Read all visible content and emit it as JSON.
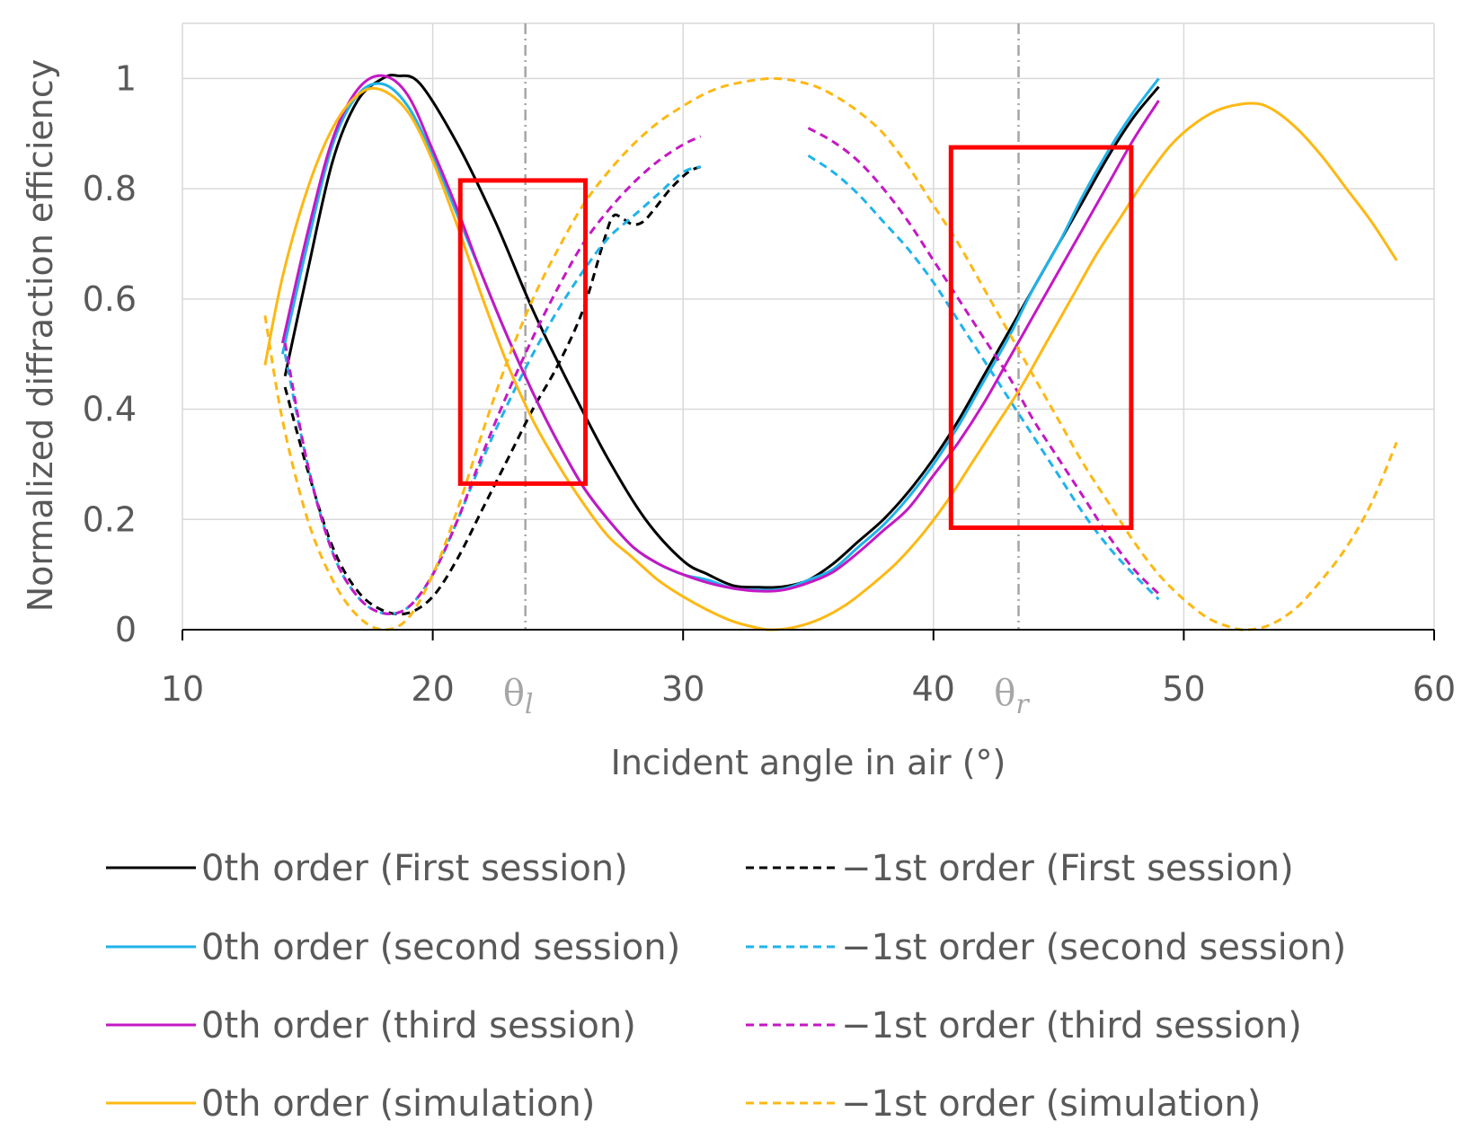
{
  "chart_data": {
    "type": "line",
    "xlabel": "Incident angle in air (°)",
    "ylabel": "Normalized diffraction efficiency",
    "xlim": [
      10,
      60
    ],
    "ylim": [
      0,
      1.1
    ],
    "x_ticks": [
      "10",
      "20",
      "30",
      "40",
      "50",
      "60"
    ],
    "y_ticks": [
      "0",
      "0.2",
      "0.4",
      "0.6",
      "0.8",
      "1"
    ],
    "grid": true,
    "vlines": [
      {
        "label": "θ",
        "sub": "l",
        "x": 23.7,
        "color": "#a6a6a6"
      },
      {
        "label": "θ",
        "sub": "r",
        "x": 43.4,
        "color": "#a6a6a6"
      }
    ],
    "highlight_boxes": [
      {
        "x": [
          21.1,
          26.1
        ],
        "y": [
          0.265,
          0.815
        ],
        "color": "#ff0000"
      },
      {
        "x": [
          40.7,
          47.9
        ],
        "y": [
          0.185,
          0.875
        ],
        "color": "#ff0000"
      }
    ],
    "series": [
      {
        "name": "0th order (First session)",
        "color": "#000000",
        "dash": false,
        "points": [
          [
            14.1,
            0.46
          ],
          [
            15,
            0.65
          ],
          [
            16,
            0.85
          ],
          [
            17,
            0.96
          ],
          [
            18,
            1.0
          ],
          [
            18.6,
            1.005
          ],
          [
            19.5,
            0.99
          ],
          [
            21,
            0.88
          ],
          [
            22.5,
            0.74
          ],
          [
            24,
            0.58
          ],
          [
            25.5,
            0.44
          ],
          [
            27,
            0.31
          ],
          [
            28.5,
            0.2
          ],
          [
            30,
            0.125
          ],
          [
            31,
            0.1
          ],
          [
            32,
            0.08
          ],
          [
            33,
            0.077
          ],
          [
            34,
            0.078
          ],
          [
            35,
            0.09
          ],
          [
            36,
            0.12
          ],
          [
            37,
            0.16
          ],
          [
            38,
            0.2
          ],
          [
            39,
            0.25
          ],
          [
            40,
            0.31
          ],
          [
            41,
            0.38
          ],
          [
            42,
            0.46
          ],
          [
            43,
            0.54
          ],
          [
            44,
            0.62
          ],
          [
            45,
            0.7
          ],
          [
            46,
            0.78
          ],
          [
            47,
            0.86
          ],
          [
            48,
            0.93
          ],
          [
            49,
            0.985
          ]
        ]
      },
      {
        "name": "−1st order (First session)",
        "color": "#000000",
        "dash": true,
        "points": [
          [
            14.1,
            0.44
          ],
          [
            15,
            0.29
          ],
          [
            16,
            0.15
          ],
          [
            17,
            0.07
          ],
          [
            18,
            0.035
          ],
          [
            19,
            0.03
          ],
          [
            20,
            0.06
          ],
          [
            21,
            0.13
          ],
          [
            22,
            0.22
          ],
          [
            23,
            0.31
          ],
          [
            24,
            0.4
          ],
          [
            25,
            0.48
          ],
          [
            26,
            0.58
          ],
          [
            26.8,
            0.7
          ],
          [
            27.2,
            0.75
          ],
          [
            27.6,
            0.745
          ],
          [
            28,
            0.735
          ],
          [
            28.4,
            0.74
          ],
          [
            28.8,
            0.76
          ],
          [
            29.5,
            0.8
          ],
          [
            30.2,
            0.83
          ],
          [
            30.7,
            0.84
          ]
        ]
      },
      {
        "name": "0th order (second session)",
        "color": "#1fb3ea",
        "dash": false,
        "points": [
          [
            14,
            0.5
          ],
          [
            15,
            0.7
          ],
          [
            16,
            0.88
          ],
          [
            17,
            0.97
          ],
          [
            18,
            0.99
          ],
          [
            19,
            0.95
          ],
          [
            20,
            0.86
          ],
          [
            21,
            0.75
          ],
          [
            22,
            0.64
          ],
          [
            23,
            0.53
          ],
          [
            24,
            0.43
          ],
          [
            25,
            0.34
          ],
          [
            26,
            0.26
          ],
          [
            27,
            0.2
          ],
          [
            28,
            0.15
          ],
          [
            29,
            0.12
          ],
          [
            30,
            0.1
          ],
          [
            31,
            0.09
          ],
          [
            32,
            0.075
          ],
          [
            33,
            0.072
          ],
          [
            34,
            0.074
          ],
          [
            35,
            0.09
          ],
          [
            36,
            0.11
          ],
          [
            37,
            0.15
          ],
          [
            38,
            0.19
          ],
          [
            39,
            0.24
          ],
          [
            40,
            0.3
          ],
          [
            41,
            0.37
          ],
          [
            42,
            0.45
          ],
          [
            43,
            0.53
          ],
          [
            44,
            0.62
          ],
          [
            45,
            0.7
          ],
          [
            46,
            0.79
          ],
          [
            47,
            0.87
          ],
          [
            48,
            0.94
          ],
          [
            49,
            1.0
          ]
        ]
      },
      {
        "name": "−1st order (second session)",
        "color": "#1fb3ea",
        "dash": true,
        "points": [
          [
            14.1,
            0.5
          ],
          [
            15,
            0.3
          ],
          [
            16,
            0.14
          ],
          [
            17,
            0.06
          ],
          [
            18,
            0.03
          ],
          [
            19,
            0.04
          ],
          [
            20,
            0.1
          ],
          [
            21,
            0.2
          ],
          [
            22,
            0.31
          ],
          [
            23,
            0.41
          ],
          [
            24,
            0.5
          ],
          [
            25,
            0.58
          ],
          [
            26,
            0.65
          ],
          [
            27,
            0.71
          ],
          [
            28,
            0.75
          ],
          [
            29,
            0.79
          ],
          [
            30,
            0.83
          ],
          [
            30.7,
            0.84
          ],
          [
            35,
            0.86
          ],
          [
            36,
            0.83
          ],
          [
            37,
            0.79
          ],
          [
            38,
            0.74
          ],
          [
            39,
            0.69
          ],
          [
            40,
            0.63
          ],
          [
            41,
            0.56
          ],
          [
            42,
            0.49
          ],
          [
            43,
            0.42
          ],
          [
            44,
            0.35
          ],
          [
            45,
            0.28
          ],
          [
            46,
            0.21
          ],
          [
            47,
            0.15
          ],
          [
            48,
            0.1
          ],
          [
            49,
            0.055
          ]
        ]
      },
      {
        "name": "0th order (third session)",
        "color": "#c418c4",
        "dash": false,
        "points": [
          [
            14,
            0.52
          ],
          [
            15,
            0.72
          ],
          [
            16,
            0.89
          ],
          [
            17,
            0.98
          ],
          [
            18,
            1.005
          ],
          [
            19,
            0.97
          ],
          [
            20,
            0.87
          ],
          [
            21,
            0.76
          ],
          [
            22,
            0.64
          ],
          [
            23,
            0.53
          ],
          [
            24,
            0.43
          ],
          [
            25,
            0.34
          ],
          [
            26,
            0.26
          ],
          [
            27,
            0.2
          ],
          [
            28,
            0.15
          ],
          [
            29,
            0.12
          ],
          [
            30,
            0.1
          ],
          [
            31,
            0.085
          ],
          [
            32,
            0.075
          ],
          [
            33,
            0.07
          ],
          [
            34,
            0.072
          ],
          [
            35,
            0.085
          ],
          [
            36,
            0.105
          ],
          [
            37,
            0.14
          ],
          [
            38,
            0.18
          ],
          [
            39,
            0.22
          ],
          [
            40,
            0.28
          ],
          [
            41,
            0.34
          ],
          [
            42,
            0.41
          ],
          [
            43,
            0.49
          ],
          [
            44,
            0.57
          ],
          [
            45,
            0.65
          ],
          [
            46,
            0.73
          ],
          [
            47,
            0.81
          ],
          [
            48,
            0.89
          ],
          [
            49,
            0.96
          ]
        ]
      },
      {
        "name": "−1st order (third session)",
        "color": "#c418c4",
        "dash": true,
        "points": [
          [
            14.1,
            0.52
          ],
          [
            15,
            0.3
          ],
          [
            16,
            0.14
          ],
          [
            17,
            0.06
          ],
          [
            18,
            0.03
          ],
          [
            19,
            0.04
          ],
          [
            20,
            0.1
          ],
          [
            21,
            0.2
          ],
          [
            22,
            0.32
          ],
          [
            23,
            0.43
          ],
          [
            24,
            0.53
          ],
          [
            25,
            0.62
          ],
          [
            26,
            0.7
          ],
          [
            27,
            0.76
          ],
          [
            28,
            0.81
          ],
          [
            29,
            0.85
          ],
          [
            30,
            0.88
          ],
          [
            30.7,
            0.895
          ],
          [
            35,
            0.91
          ],
          [
            36,
            0.885
          ],
          [
            37,
            0.85
          ],
          [
            38,
            0.8
          ],
          [
            39,
            0.74
          ],
          [
            40,
            0.67
          ],
          [
            41,
            0.6
          ],
          [
            42,
            0.53
          ],
          [
            43,
            0.46
          ],
          [
            44,
            0.38
          ],
          [
            45,
            0.31
          ],
          [
            46,
            0.24
          ],
          [
            47,
            0.17
          ],
          [
            48,
            0.11
          ],
          [
            49,
            0.065
          ]
        ]
      },
      {
        "name": "0th order (simulation)",
        "color": "#fdb813",
        "dash": false,
        "points": [
          [
            13.3,
            0.48
          ],
          [
            14,
            0.64
          ],
          [
            15,
            0.8
          ],
          [
            16,
            0.91
          ],
          [
            17,
            0.97
          ],
          [
            17.9,
            0.98
          ],
          [
            19,
            0.94
          ],
          [
            20,
            0.85
          ],
          [
            21,
            0.73
          ],
          [
            22,
            0.6
          ],
          [
            23,
            0.48
          ],
          [
            24,
            0.38
          ],
          [
            25,
            0.3
          ],
          [
            26,
            0.23
          ],
          [
            27,
            0.17
          ],
          [
            28,
            0.13
          ],
          [
            29,
            0.09
          ],
          [
            30,
            0.06
          ],
          [
            31,
            0.035
          ],
          [
            32,
            0.015
          ],
          [
            33,
            0.003
          ],
          [
            33.6,
            0.0
          ],
          [
            34.5,
            0.005
          ],
          [
            35.5,
            0.02
          ],
          [
            36.5,
            0.045
          ],
          [
            37.5,
            0.08
          ],
          [
            38.5,
            0.12
          ],
          [
            39.5,
            0.17
          ],
          [
            40.5,
            0.23
          ],
          [
            41.5,
            0.3
          ],
          [
            42.5,
            0.37
          ],
          [
            43.5,
            0.44
          ],
          [
            44.5,
            0.52
          ],
          [
            45.5,
            0.6
          ],
          [
            46.5,
            0.68
          ],
          [
            47.5,
            0.75
          ],
          [
            48.5,
            0.82
          ],
          [
            49.5,
            0.88
          ],
          [
            50.5,
            0.92
          ],
          [
            51.5,
            0.945
          ],
          [
            52.7,
            0.955
          ],
          [
            53.5,
            0.945
          ],
          [
            54.5,
            0.91
          ],
          [
            55.5,
            0.86
          ],
          [
            56.5,
            0.8
          ],
          [
            57.5,
            0.74
          ],
          [
            58.5,
            0.67
          ]
        ]
      },
      {
        "name": "−1st order (simulation)",
        "color": "#fdb813",
        "dash": true,
        "points": [
          [
            13.3,
            0.57
          ],
          [
            14,
            0.38
          ],
          [
            15,
            0.2
          ],
          [
            16,
            0.09
          ],
          [
            17,
            0.025
          ],
          [
            18,
            0.0
          ],
          [
            19,
            0.02
          ],
          [
            20,
            0.1
          ],
          [
            21,
            0.22
          ],
          [
            22,
            0.36
          ],
          [
            23,
            0.49
          ],
          [
            24,
            0.6
          ],
          [
            25,
            0.69
          ],
          [
            26,
            0.77
          ],
          [
            27,
            0.83
          ],
          [
            28,
            0.88
          ],
          [
            29,
            0.92
          ],
          [
            30,
            0.95
          ],
          [
            31,
            0.975
          ],
          [
            32,
            0.99
          ],
          [
            33.6,
            1.0
          ],
          [
            35,
            0.99
          ],
          [
            36,
            0.97
          ],
          [
            37,
            0.94
          ],
          [
            38,
            0.9
          ],
          [
            39,
            0.84
          ],
          [
            40,
            0.77
          ],
          [
            41,
            0.7
          ],
          [
            42,
            0.62
          ],
          [
            43,
            0.54
          ],
          [
            44,
            0.46
          ],
          [
            45,
            0.38
          ],
          [
            46,
            0.3
          ],
          [
            47,
            0.23
          ],
          [
            48,
            0.16
          ],
          [
            49,
            0.1
          ],
          [
            50,
            0.055
          ],
          [
            51,
            0.02
          ],
          [
            52,
            0.003
          ],
          [
            52.6,
            0.0
          ],
          [
            53.5,
            0.01
          ],
          [
            54.5,
            0.04
          ],
          [
            55.5,
            0.09
          ],
          [
            56.5,
            0.15
          ],
          [
            57.5,
            0.23
          ],
          [
            58.5,
            0.34
          ]
        ]
      }
    ]
  },
  "legend": {
    "items": [
      {
        "label": "0th order (First session)",
        "color": "#000000",
        "dash": false
      },
      {
        "label": "−1st order (First session)",
        "color": "#000000",
        "dash": true
      },
      {
        "label": "0th order (second session)",
        "color": "#1fb3ea",
        "dash": false
      },
      {
        "label": "−1st order (second session)",
        "color": "#1fb3ea",
        "dash": true
      },
      {
        "label": "0th order (third session)",
        "color": "#c418c4",
        "dash": false
      },
      {
        "label": "−1st order (third session)",
        "color": "#c418c4",
        "dash": true
      },
      {
        "label": "0th order (simulation)",
        "color": "#fdb813",
        "dash": false
      },
      {
        "label": "−1st order (simulation)",
        "color": "#fdb813",
        "dash": true
      }
    ]
  }
}
